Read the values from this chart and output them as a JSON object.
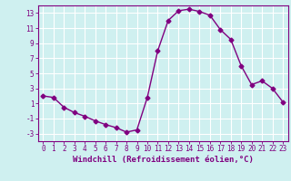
{
  "x": [
    0,
    1,
    2,
    3,
    4,
    5,
    6,
    7,
    8,
    9,
    10,
    11,
    12,
    13,
    14,
    15,
    16,
    17,
    18,
    19,
    20,
    21,
    22,
    23
  ],
  "y": [
    2.0,
    1.8,
    0.5,
    -0.2,
    -0.7,
    -1.3,
    -1.8,
    -2.2,
    -2.8,
    -2.5,
    1.8,
    8.0,
    12.0,
    13.3,
    13.5,
    13.2,
    12.7,
    10.8,
    9.5,
    6.0,
    3.5,
    4.0,
    3.0,
    1.2
  ],
  "line_color": "#800080",
  "marker": "D",
  "marker_size": 2.5,
  "bg_color": "#cff0f0",
  "grid_color": "#ffffff",
  "xlabel": "Windchill (Refroidissement éolien,°C)",
  "ylabel": "",
  "ylim": [
    -4,
    14
  ],
  "xlim": [
    -0.5,
    23.5
  ],
  "yticks": [
    -3,
    -1,
    1,
    3,
    5,
    7,
    9,
    11,
    13
  ],
  "xticks": [
    0,
    1,
    2,
    3,
    4,
    5,
    6,
    7,
    8,
    9,
    10,
    11,
    12,
    13,
    14,
    15,
    16,
    17,
    18,
    19,
    20,
    21,
    22,
    23
  ],
  "axis_color": "#800080",
  "tick_color": "#800080",
  "label_color": "#800080",
  "label_fontsize": 6.5,
  "tick_fontsize": 5.5,
  "linewidth": 1.0
}
